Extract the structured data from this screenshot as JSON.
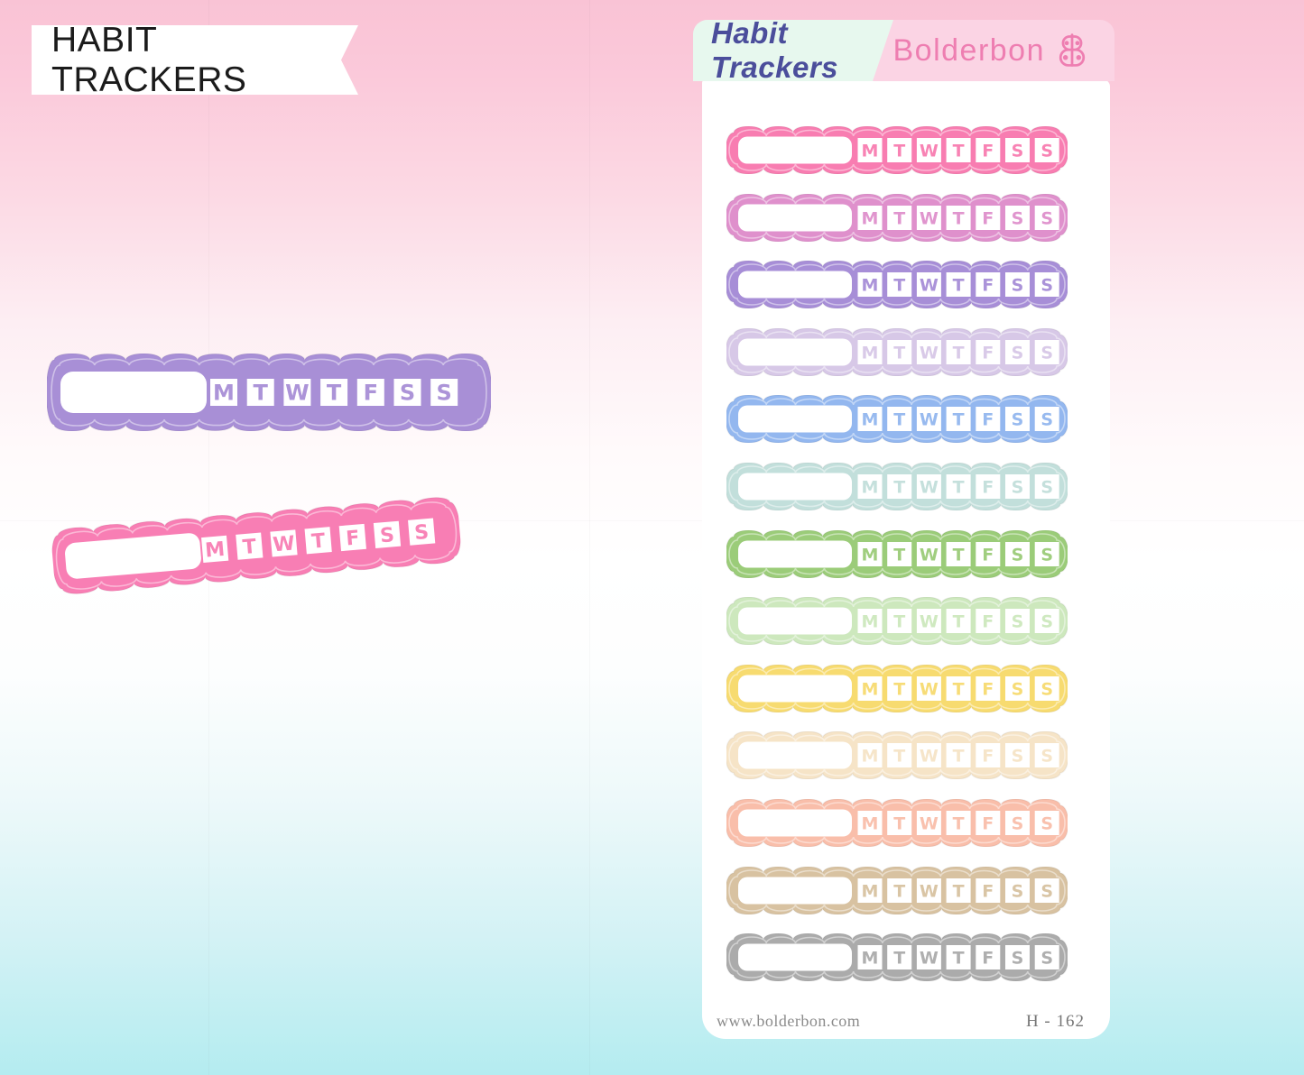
{
  "title_banner": {
    "text": "HABIT TRACKERS",
    "bg": "#ffffff",
    "text_color": "#1b1b1b"
  },
  "background": {
    "top": "#f9c3d5",
    "middle": "#ffffff",
    "bottom": "#b4ecf0"
  },
  "sheet": {
    "header": {
      "product_label": "Habit Trackers",
      "product_label_color": "#4b4e9b",
      "product_label_bg": "#e7f8ee",
      "brand_label": "Bolderbon",
      "brand_label_color": "#ee7eb1",
      "brand_label_bg": "#fbd4e4",
      "logo": "bb-butterfly-logo"
    },
    "days": [
      "M",
      "T",
      "W",
      "T",
      "F",
      "S",
      "S"
    ],
    "rows": [
      {
        "name": "pink",
        "color": "#f87db1"
      },
      {
        "name": "orchid",
        "color": "#df90cc"
      },
      {
        "name": "purple",
        "color": "#a78ed7"
      },
      {
        "name": "pale-lavender",
        "color": "#d7c8e7"
      },
      {
        "name": "blue",
        "color": "#93b7ef"
      },
      {
        "name": "pale-aqua",
        "color": "#c2dfdb"
      },
      {
        "name": "green",
        "color": "#9bcc79"
      },
      {
        "name": "pale-green",
        "color": "#cde8bd"
      },
      {
        "name": "yellow",
        "color": "#f7db70"
      },
      {
        "name": "cream",
        "color": "#f6e4c7"
      },
      {
        "name": "salmon",
        "color": "#f9beaa"
      },
      {
        "name": "tan",
        "color": "#d8c2a1"
      },
      {
        "name": "gray",
        "color": "#ababab"
      }
    ],
    "footer": {
      "website": "www.bolderbon.com",
      "sku": "H - 162"
    }
  },
  "samples": [
    {
      "name": "purple-sample",
      "color": "#a88fd6"
    },
    {
      "name": "pink-sample",
      "color": "#f87eb4"
    }
  ]
}
